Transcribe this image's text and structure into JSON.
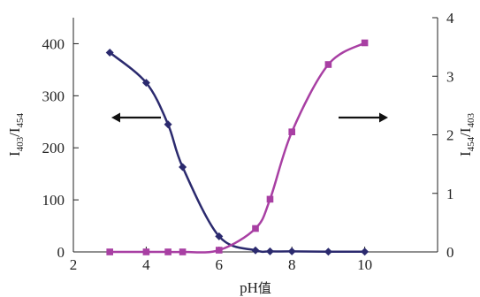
{
  "chart_data": {
    "type": "line",
    "grid": false,
    "x_axis": {
      "label_main": "pH",
      "label_suffix": "值",
      "range": [
        2,
        12
      ],
      "ticks": [
        2,
        4,
        6,
        8,
        10
      ],
      "tick_labels": [
        "2",
        "4",
        "6",
        "8",
        "10"
      ]
    },
    "y_left": {
      "label_parts": [
        "I",
        "403",
        "/I",
        "454"
      ],
      "range": [
        0,
        450
      ],
      "ticks": [
        0,
        100,
        200,
        300,
        400
      ],
      "tick_labels": [
        "0",
        "100",
        "200",
        "300",
        "400"
      ]
    },
    "y_right": {
      "label_parts": [
        "I",
        "454",
        "/I",
        "403"
      ],
      "range": [
        0,
        4
      ],
      "ticks": [
        0,
        1,
        2,
        3,
        4
      ],
      "tick_labels": [
        "0",
        "1",
        "2",
        "3",
        "4"
      ]
    },
    "series": [
      {
        "axis": "left",
        "color": "#2b2a6e",
        "marker": "diamond",
        "x": [
          3,
          4,
          4.6,
          5,
          6,
          7,
          7.4,
          8,
          9,
          10
        ],
        "y": [
          383,
          325,
          245,
          163,
          30,
          3,
          1,
          1,
          0.5,
          0.5
        ]
      },
      {
        "axis": "right",
        "color": "#a83fa3",
        "marker": "square",
        "x": [
          3,
          4,
          4.6,
          5,
          6,
          7,
          7.4,
          8,
          9,
          10
        ],
        "y": [
          0,
          0,
          0,
          0,
          0.03,
          0.4,
          0.9,
          2.05,
          3.2,
          3.57
        ]
      }
    ],
    "arrows": [
      {
        "direction": "left",
        "axis": "left"
      },
      {
        "direction": "right",
        "axis": "right"
      }
    ]
  }
}
